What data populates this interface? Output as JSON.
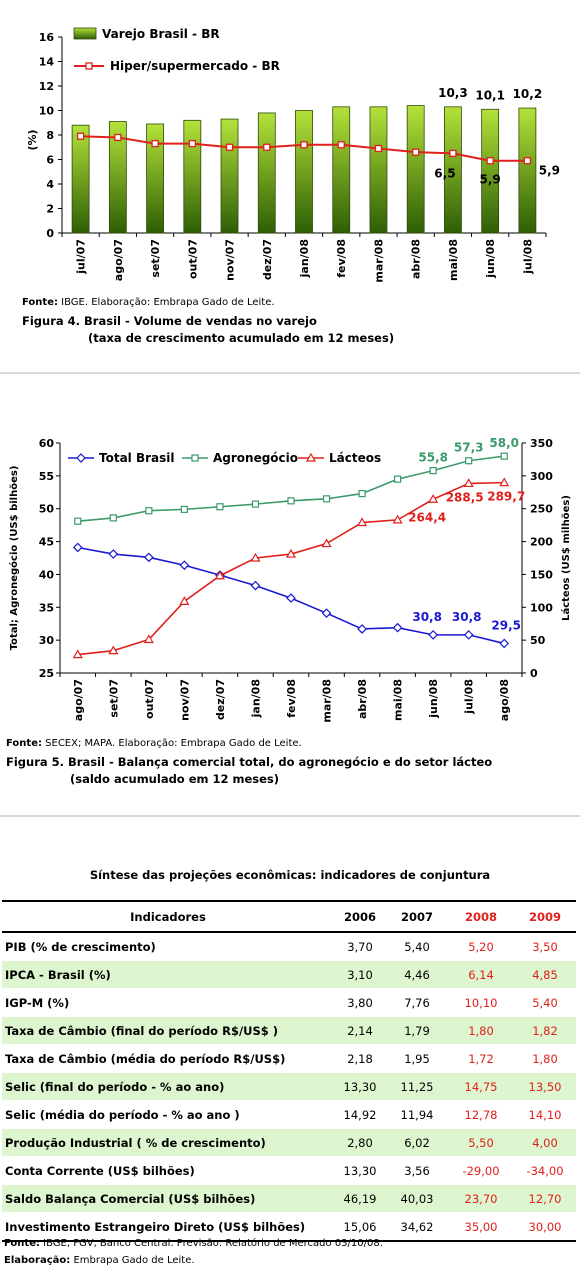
{
  "chart_data": [
    {
      "type": "bar",
      "categories": [
        "jul/07",
        "ago/07",
        "set/07",
        "out/07",
        "nov/07",
        "dez/07",
        "jan/08",
        "fev/08",
        "mar/08",
        "abr/08",
        "mai/08",
        "jun/08",
        "jul/08"
      ],
      "ylabel": "(%)",
      "ylim": [
        0,
        16
      ],
      "yticks": [
        0,
        2,
        4,
        6,
        8,
        10,
        12,
        14,
        16
      ],
      "legend": "top-left",
      "series": [
        {
          "name": "Varejo Brasil - BR",
          "type": "bar",
          "color": "#8db83a",
          "values": [
            8.8,
            9.1,
            8.9,
            9.2,
            9.3,
            9.8,
            10.0,
            10.3,
            10.3,
            10.4,
            10.3,
            10.1,
            10.2
          ]
        },
        {
          "name": "Hiper/supermercado - BR",
          "type": "line",
          "color": "#e0201a",
          "values": [
            7.9,
            7.8,
            7.3,
            7.3,
            7.0,
            7.0,
            7.2,
            7.2,
            6.9,
            6.6,
            6.5,
            5.9,
            5.9
          ]
        }
      ],
      "bar_labels": [
        {
          "index": 10,
          "text": "10,3"
        },
        {
          "index": 11,
          "text": "10,1"
        },
        {
          "index": 12,
          "text": "10,2"
        }
      ],
      "line_labels": [
        {
          "index": 10,
          "text": "6,5"
        },
        {
          "index": 11,
          "text": "5,9"
        },
        {
          "index": 12,
          "text": "5,9"
        }
      ]
    },
    {
      "type": "line",
      "categories": [
        "ago/07",
        "set/07",
        "out/07",
        "nov/07",
        "dez/07",
        "jan/08",
        "fev/08",
        "mar/08",
        "abr/08",
        "mai/08",
        "jun/08",
        "jul/08",
        "ago/08"
      ],
      "ylabel": "Total; Agronegócio (US$ bilhões)",
      "y2label": "Lácteos (US$ milhões)",
      "ylim": [
        25,
        60
      ],
      "yticks": [
        25,
        30,
        35,
        40,
        45,
        50,
        55,
        60
      ],
      "y2lim": [
        0,
        350
      ],
      "y2ticks": [
        0,
        50,
        100,
        150,
        200,
        250,
        300,
        350
      ],
      "legend": "top",
      "series": [
        {
          "name": "Total Brasil",
          "axis": "left",
          "color": "#1a1ad0",
          "marker": "diamond",
          "values": [
            44.1,
            43.1,
            42.6,
            41.4,
            39.9,
            38.3,
            36.4,
            34.1,
            31.7,
            31.9,
            30.8,
            30.8,
            29.5
          ]
        },
        {
          "name": "Agronegócio",
          "axis": "left",
          "color": "#3a9a6a",
          "marker": "square",
          "values": [
            48.1,
            48.6,
            49.7,
            49.9,
            50.3,
            50.7,
            51.2,
            51.5,
            52.3,
            54.5,
            55.8,
            57.3,
            58.0
          ]
        },
        {
          "name": "Lácteos",
          "axis": "right",
          "color": "#e0201a",
          "marker": "triangle",
          "values": [
            28,
            34,
            51,
            109,
            148,
            175,
            181,
            197,
            229,
            233,
            264.4,
            288.5,
            289.7
          ]
        }
      ],
      "labels": [
        {
          "series": 1,
          "index": 10,
          "text": "55,8"
        },
        {
          "series": 1,
          "index": 11,
          "text": "57,3"
        },
        {
          "series": 1,
          "index": 12,
          "text": "58,0"
        },
        {
          "series": 2,
          "index": 10,
          "text": "264,4"
        },
        {
          "series": 2,
          "index": 11,
          "text": "288,5"
        },
        {
          "series": 2,
          "index": 12,
          "text": "289,7"
        },
        {
          "series": 0,
          "index": 10,
          "text": "30,8"
        },
        {
          "series": 0,
          "index": 11,
          "text": "30,8"
        },
        {
          "series": 0,
          "index": 12,
          "text": "29,5"
        }
      ]
    },
    {
      "type": "table",
      "title": "Síntese das projeções econômicas: indicadores de conjuntura",
      "header": [
        "Indicadores",
        "2006",
        "2007",
        "2008",
        "2009"
      ],
      "rows": [
        [
          "PIB (% de crescimento)",
          "3,70",
          "5,40",
          "5,20",
          "3,50"
        ],
        [
          "IPCA - Brasil (%)",
          "3,10",
          "4,46",
          "6,14",
          "4,85"
        ],
        [
          "IGP-M (%)",
          "3,80",
          "7,76",
          "10,10",
          "5,40"
        ],
        [
          "Taxa de Câmbio (final do período R$/US$ )",
          "2,14",
          "1,79",
          "1,80",
          "1,82"
        ],
        [
          "Taxa de Câmbio (média do período R$/US$)",
          "2,18",
          "1,95",
          "1,72",
          "1,80"
        ],
        [
          "Selic (final do período - % ao ano)",
          "13,30",
          "11,25",
          "14,75",
          "13,50"
        ],
        [
          "Selic (média do período - % ao ano )",
          "14,92",
          "11,94",
          "12,78",
          "14,10"
        ],
        [
          "Produção Industrial ( % de crescimento)",
          "2,80",
          "6,02",
          "5,50",
          "4,00"
        ],
        [
          "Conta Corrente (US$ bilhões)",
          "13,30",
          "3,56",
          "-29,00",
          "-34,00"
        ],
        [
          "Saldo Balança Comercial (US$ bilhões)",
          "46,19",
          "40,03",
          "23,70",
          "12,70"
        ],
        [
          "Investimento Estrangeiro Direto (US$ bilhões)",
          "15,06",
          "34,62",
          "35,00",
          "30,00"
        ]
      ]
    }
  ],
  "fig4": {
    "source_label": "Fonte:",
    "source_text": " IBGE. Elaboração: Embrapa Gado de Leite.",
    "caption_line1": "Figura 4. Brasil - Volume de vendas no varejo",
    "caption_line2": "(taxa de crescimento acumulado em 12 meses)"
  },
  "fig5": {
    "source_label": "Fonte:",
    "source_text": " SECEX; MAPA. Elaboração: Embrapa Gado de Leite.",
    "caption_line1": "Figura 5. Brasil - Balança comercial total, do agronegócio e do setor lácteo",
    "caption_line2": "(saldo acumulado em 12 meses)"
  },
  "table_notes": {
    "source_label": "Fonte:",
    "source_text": " IBGE, FGV, Banco Central. Previsão: Relatório de Mercado 03/10/08.",
    "elab_label": "Elaboração:",
    "elab_text": " Embrapa Gado de Leite."
  }
}
